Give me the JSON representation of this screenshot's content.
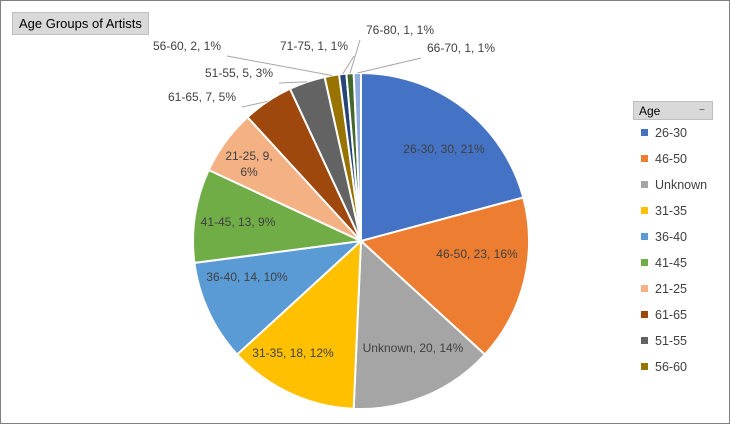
{
  "title": "Age Groups of Artists",
  "legend_title": "Age",
  "legend_dropdown_icon": "dropdown-arrow-icon",
  "chart_data": {
    "type": "pie",
    "title": "Age Groups of Artists",
    "legend_placement": "right",
    "slices": [
      {
        "label": "26-30",
        "value": 30,
        "percent": "21%",
        "color": "#4472c4",
        "text": "26-30, 30, 21%"
      },
      {
        "label": "46-50",
        "value": 23,
        "percent": "16%",
        "color": "#ed7d31",
        "text": "46-50, 23, 16%"
      },
      {
        "label": "Unknown",
        "value": 20,
        "percent": "14%",
        "color": "#a5a5a5",
        "text": "Unknown, 20, 14%"
      },
      {
        "label": "31-35",
        "value": 18,
        "percent": "12%",
        "color": "#ffc000",
        "text": "31-35, 18, 12%"
      },
      {
        "label": "36-40",
        "value": 14,
        "percent": "10%",
        "color": "#5b9bd5",
        "text": "36-40, 14, 10%"
      },
      {
        "label": "41-45",
        "value": 13,
        "percent": "9%",
        "color": "#70ad47",
        "text": "41-45, 13, 9%"
      },
      {
        "label": "21-25",
        "value": 9,
        "percent": "6%",
        "color": "#f4b183",
        "text": "21-25, 9, 6%"
      },
      {
        "label": "61-65",
        "value": 7,
        "percent": "5%",
        "color": "#9e480e",
        "text": "61-65, 7, 5%"
      },
      {
        "label": "51-55",
        "value": 5,
        "percent": "3%",
        "color": "#636363",
        "text": "51-55, 5, 3%"
      },
      {
        "label": "56-60",
        "value": 2,
        "percent": "1%",
        "color": "#997300",
        "text": "56-60, 2, 1%"
      },
      {
        "label": "71-75",
        "value": 1,
        "percent": "1%",
        "color": "#264478",
        "text": "71-75, 1, 1%"
      },
      {
        "label": "76-80",
        "value": 1,
        "percent": "1%",
        "color": "#43682b",
        "text": "76-80, 1, 1%"
      },
      {
        "label": "66-70",
        "value": 1,
        "percent": "1%",
        "color": "#8faadc",
        "text": "66-70, 1, 1%"
      }
    ],
    "legend_entries": [
      "26-30",
      "46-50",
      "Unknown",
      "31-35",
      "36-40",
      "41-45",
      "21-25",
      "61-65",
      "51-55",
      "56-60"
    ]
  }
}
